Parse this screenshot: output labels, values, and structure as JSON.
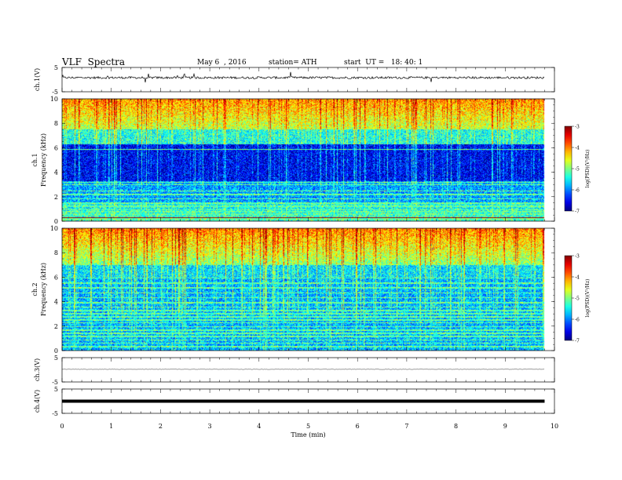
{
  "header": {
    "title": "VLF  Spectra",
    "date": "May 6  , 2016",
    "station": "station= ATH",
    "start": "start  UT =   18: 40: 1"
  },
  "chart_data": [
    {
      "type": "line",
      "name": "ch1-waveform",
      "ylabel": "ch.1(V)",
      "ylim": [
        -5,
        5
      ],
      "yticks": [
        "5",
        "-5"
      ],
      "xlim": [
        0,
        10
      ],
      "baseline_v": 0.8
    },
    {
      "type": "heatmap",
      "name": "ch1-spectrogram",
      "ylabel": "ch.1\nFrequency  (kHz)",
      "ylim": [
        0,
        10
      ],
      "yticks": [
        "0",
        "2",
        "4",
        "6",
        "8",
        "10"
      ],
      "xlim": [
        0,
        10
      ],
      "data_end_min": 9.8,
      "colorbar": {
        "label": "log(PSD)(V²/Hz)",
        "range": [
          -7,
          -3
        ],
        "ticks": [
          "-3",
          "-4",
          "-5",
          "-6",
          "-7"
        ]
      }
    },
    {
      "type": "heatmap",
      "name": "ch2-spectrogram",
      "ylabel": "ch.2\nFrequency  (kHz)",
      "ylim": [
        0,
        10
      ],
      "yticks": [
        "0",
        "2",
        "4",
        "6",
        "8",
        "10"
      ],
      "xlim": [
        0,
        10
      ],
      "data_end_min": 9.8,
      "colorbar": {
        "label": "log(PSD)(V²/Hz)",
        "range": [
          -7,
          -3
        ],
        "ticks": [
          "-3",
          "-4",
          "-5",
          "-6",
          "-7"
        ]
      }
    },
    {
      "type": "line",
      "name": "ch3-waveform",
      "ylabel": "ch.3(V)",
      "ylim": [
        -5,
        5
      ],
      "yticks": [
        "5",
        "-5"
      ],
      "xlim": [
        0,
        10
      ],
      "baseline_v": 0.2
    },
    {
      "type": "line",
      "name": "ch4-waveform",
      "ylabel": "ch.4(V)",
      "ylim": [
        -5,
        5
      ],
      "yticks": [
        "5",
        "-5"
      ],
      "xlim": [
        0,
        10
      ],
      "baseline_v": 0,
      "xlabel": "Time  (min)",
      "xticks": [
        "0",
        "1",
        "2",
        "3",
        "4",
        "5",
        "6",
        "7",
        "8",
        "9",
        "10"
      ]
    }
  ]
}
